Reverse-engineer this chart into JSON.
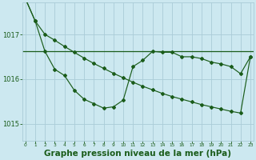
{
  "background_color": "#cce8f0",
  "grid_color": "#aaccd8",
  "line_color": "#1a5c1a",
  "xlabel": "Graphe pression niveau de la mer (hPa)",
  "xlabel_fontsize": 7.5,
  "ylim": [
    1014.62,
    1017.72
  ],
  "xlim": [
    -0.3,
    23.3
  ],
  "ytick_values": [
    1015,
    1016,
    1017
  ],
  "ytick_fontsize": 6,
  "xtick_fontsize": 4.2,
  "hline_y": 1016.62,
  "x": [
    0,
    1,
    2,
    3,
    4,
    5,
    6,
    7,
    8,
    9,
    10,
    11,
    12,
    13,
    14,
    15,
    16,
    17,
    18,
    19,
    20,
    21,
    22,
    23
  ],
  "line1_y": [
    1017.8,
    1017.3,
    1017.0,
    1016.87,
    1016.73,
    1016.6,
    1016.47,
    1016.35,
    1016.24,
    1016.13,
    1016.03,
    1015.93,
    1015.84,
    1015.76,
    1015.68,
    1015.61,
    1015.55,
    1015.49,
    1015.43,
    1015.38,
    1015.33,
    1015.28,
    1015.24,
    1016.5
  ],
  "line2_y": [
    1017.8,
    1017.3,
    1016.62,
    1016.22,
    1016.08,
    1015.75,
    1015.55,
    1015.45,
    1015.35,
    1015.38,
    1015.53,
    1016.28,
    1016.42,
    1016.62,
    1016.6,
    1016.6,
    1016.5,
    1016.5,
    1016.46,
    1016.38,
    1016.34,
    1016.28,
    1016.12,
    1016.5
  ],
  "marker": "D",
  "markersize": 2.0,
  "linewidth": 0.85
}
